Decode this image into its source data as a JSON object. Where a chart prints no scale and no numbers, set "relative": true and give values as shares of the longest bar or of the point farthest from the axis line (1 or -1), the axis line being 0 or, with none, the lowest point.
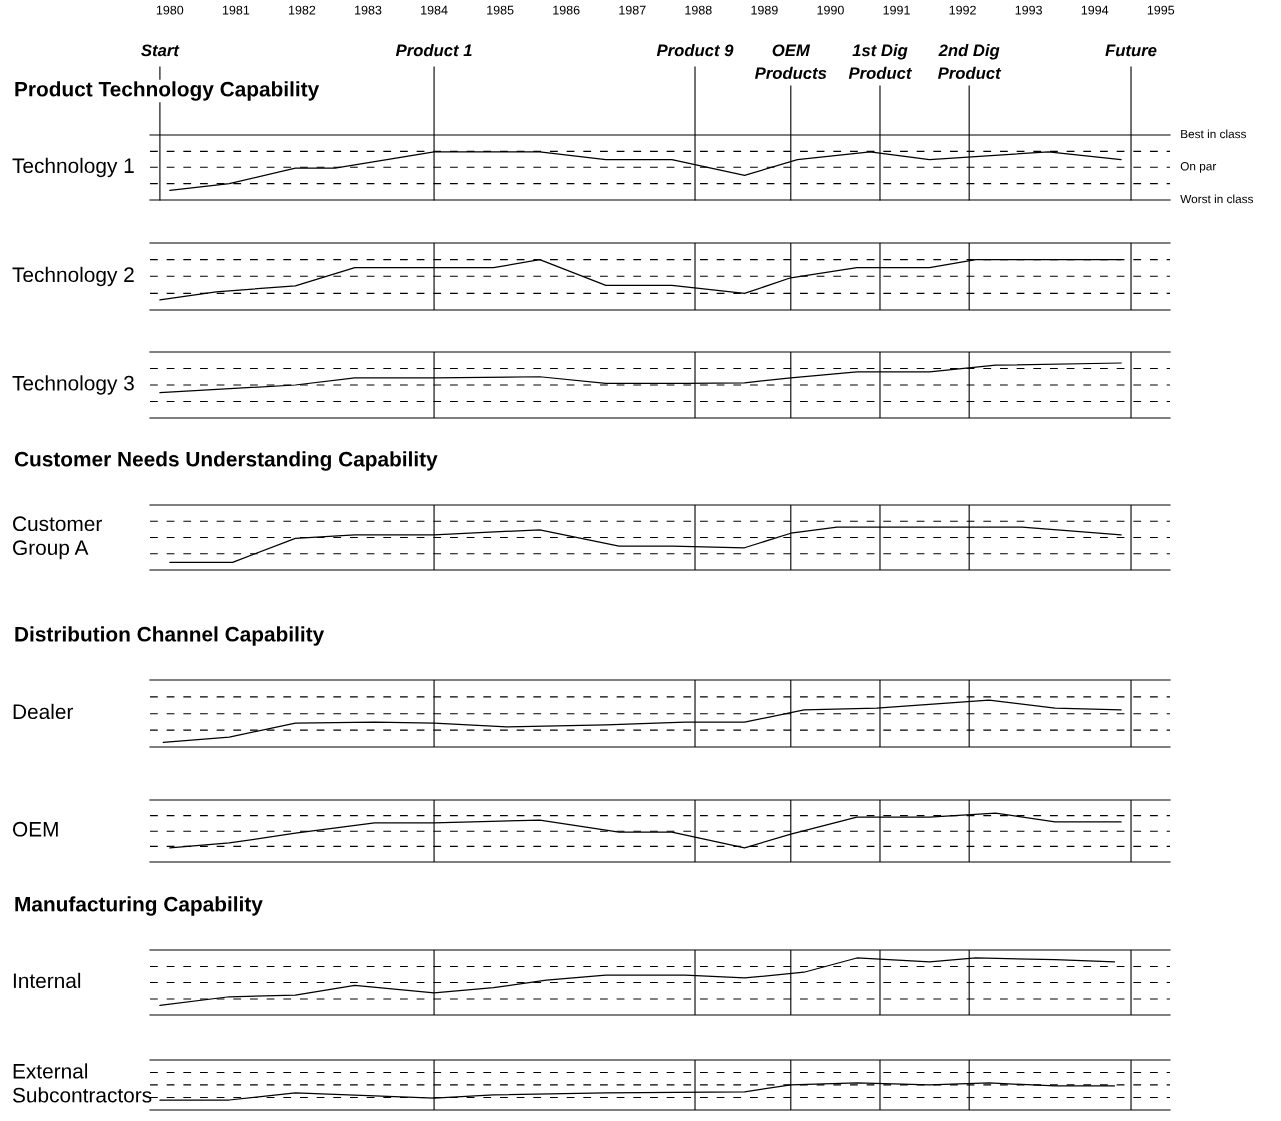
{
  "chart_data": [
    {
      "type": "line",
      "relative": true,
      "title": "Product Technology Capability",
      "ylabel": "Technology 1",
      "xlim": [
        1979.7,
        1995.14
      ],
      "xticks": [
        1980,
        1981,
        1982,
        1983,
        1984,
        1985,
        1986,
        1987,
        1988,
        1989,
        1990,
        1991,
        1992,
        1993,
        1994,
        1995
      ],
      "series": [
        {
          "color": "#000000",
          "x": [
            1980,
            1980.9,
            1981.9,
            1982.5,
            1984,
            1984.9,
            1985.6,
            1986.6,
            1987.6,
            1988.7,
            1989.5,
            1990.6,
            1991.5,
            1993.3,
            1994.4
          ],
          "values": [
            0.2,
            0.34,
            0.66,
            0.66,
            1,
            1,
            1,
            0.84,
            0.84,
            0.51,
            0.84,
            1,
            0.84,
            1,
            0.84
          ]
        }
      ],
      "ref_lines": [
        {
          "axis": "x",
          "value": 1979.85,
          "label": "Start"
        },
        {
          "axis": "x",
          "value": 1984.0,
          "label": "Product 1"
        },
        {
          "axis": "x",
          "value": 1987.95,
          "label": "Product 9"
        },
        {
          "axis": "x",
          "value": 1989.4,
          "label": "OEM\nProducts"
        },
        {
          "axis": "x",
          "value": 1990.75,
          "label": "1st Dig\nProduct"
        },
        {
          "axis": "x",
          "value": 1992.1,
          "label": "2nd Dig\nProduct"
        },
        {
          "axis": "x",
          "value": 1994.55,
          "label": "Future"
        },
        {
          "axis": "y",
          "value": 1.35,
          "label": "Best in class"
        },
        {
          "axis": "y",
          "value": 1.01,
          "line_style": "dashed"
        },
        {
          "axis": "y",
          "value": 0.68,
          "label": "On par",
          "line_style": "dashed"
        },
        {
          "axis": "y",
          "value": 0.34,
          "line_style": "dashed"
        }
      ],
      "annotations": [
        "Worst in class"
      ]
    },
    {
      "type": "line",
      "relative": true,
      "ylabel": "Technology 2",
      "xlim": [
        1979.7,
        1995.14
      ],
      "xticks": [
        1980,
        1981,
        1982,
        1983,
        1984,
        1985,
        1986,
        1987,
        1988,
        1989,
        1990,
        1991,
        1992,
        1993,
        1994,
        1995
      ],
      "tick_labels": false,
      "series": [
        {
          "color": "#000000",
          "x": [
            1979.85,
            1980.7,
            1981.9,
            1982.8,
            1984,
            1984.9,
            1985.6,
            1986.6,
            1987.6,
            1988.7,
            1989.4,
            1990.4,
            1991.5,
            1992.2,
            1994.4
          ],
          "values": [
            0.2,
            0.36,
            0.48,
            0.84,
            0.84,
            0.84,
            1,
            0.49,
            0.49,
            0.33,
            0.64,
            0.84,
            0.84,
            1,
            1
          ]
        }
      ],
      "ref_lines": [
        {
          "axis": "x",
          "value": 1984.0
        },
        {
          "axis": "x",
          "value": 1987.95
        },
        {
          "axis": "x",
          "value": 1989.4
        },
        {
          "axis": "x",
          "value": 1990.75
        },
        {
          "axis": "x",
          "value": 1992.1
        },
        {
          "axis": "x",
          "value": 1994.55
        },
        {
          "axis": "y",
          "value": 1.33
        },
        {
          "axis": "y",
          "value": 1,
          "line_style": "dashed"
        },
        {
          "axis": "y",
          "value": 0.67,
          "line_style": "dashed"
        },
        {
          "axis": "y",
          "value": 0.33,
          "line_style": "dashed"
        }
      ]
    },
    {
      "type": "line",
      "relative": true,
      "ylabel": "Technology 3",
      "xlim": [
        1979.7,
        1995.14
      ],
      "xticks": [
        1980,
        1981,
        1982,
        1983,
        1984,
        1985,
        1986,
        1987,
        1988,
        1989,
        1990,
        1991,
        1992,
        1993,
        1994,
        1995
      ],
      "tick_labels": false,
      "series": [
        {
          "color": "#000000",
          "x": [
            1979.85,
            1981.9,
            1982.8,
            1984,
            1985.6,
            1986.6,
            1987.8,
            1988.7,
            1989.4,
            1990.4,
            1991.5,
            1992.5,
            1994.4
          ],
          "values": [
            0.46,
            0.6,
            0.73,
            0.73,
            0.75,
            0.63,
            0.63,
            0.64,
            0.73,
            0.84,
            0.84,
            0.96,
            1
          ]
        }
      ],
      "ref_lines": [
        {
          "axis": "x",
          "value": 1984.0
        },
        {
          "axis": "x",
          "value": 1987.95
        },
        {
          "axis": "x",
          "value": 1989.4
        },
        {
          "axis": "x",
          "value": 1990.75
        },
        {
          "axis": "x",
          "value": 1992.1
        },
        {
          "axis": "x",
          "value": 1994.55
        },
        {
          "axis": "y",
          "value": 1.2
        },
        {
          "axis": "y",
          "value": 0.9,
          "line_style": "dashed"
        },
        {
          "axis": "y",
          "value": 0.6,
          "line_style": "dashed"
        },
        {
          "axis": "y",
          "value": 0.3,
          "line_style": "dashed"
        }
      ]
    },
    {
      "type": "line",
      "relative": true,
      "title": "Customer Needs Understanding Capability",
      "ylabel": "Customer\nGroup A",
      "xlim": [
        1979.7,
        1995.14
      ],
      "xticks": [
        1980,
        1981,
        1982,
        1983,
        1984,
        1985,
        1986,
        1987,
        1988,
        1989,
        1990,
        1991,
        1992,
        1993,
        1994,
        1995
      ],
      "tick_labels": false,
      "series": [
        {
          "color": "#000000",
          "x": [
            1980,
            1980.95,
            1981.9,
            1982.8,
            1984,
            1985.6,
            1986.8,
            1987.6,
            1988.7,
            1989.4,
            1990.1,
            1991.5,
            1992.9,
            1994.4
          ],
          "values": [
            0.18,
            0.18,
            0.74,
            0.82,
            0.82,
            0.94,
            0.56,
            0.56,
            0.52,
            0.86,
            1,
            1,
            1,
            0.82
          ]
        }
      ],
      "ref_lines": [
        {
          "axis": "x",
          "value": 1984.0
        },
        {
          "axis": "x",
          "value": 1987.95
        },
        {
          "axis": "x",
          "value": 1989.4
        },
        {
          "axis": "x",
          "value": 1990.75
        },
        {
          "axis": "x",
          "value": 1992.1
        },
        {
          "axis": "x",
          "value": 1994.55
        },
        {
          "axis": "y",
          "value": 1.52
        },
        {
          "axis": "y",
          "value": 1.14,
          "line_style": "dashed"
        },
        {
          "axis": "y",
          "value": 0.76,
          "line_style": "dashed"
        },
        {
          "axis": "y",
          "value": 0.38,
          "line_style": "dashed"
        }
      ]
    },
    {
      "type": "line",
      "relative": true,
      "title": "Distribution Channel Capability",
      "ylabel": "Dealer",
      "xlim": [
        1979.7,
        1995.14
      ],
      "xticks": [
        1980,
        1981,
        1982,
        1983,
        1984,
        1985,
        1986,
        1987,
        1988,
        1989,
        1990,
        1991,
        1992,
        1993,
        1994,
        1995
      ],
      "tick_labels": false,
      "series": [
        {
          "color": "#000000",
          "x": [
            1979.9,
            1980.9,
            1981.9,
            1983.1,
            1984,
            1985.1,
            1986.6,
            1987.8,
            1988.7,
            1989.6,
            1990.7,
            1992.4,
            1993.4,
            1994.4
          ],
          "values": [
            0.1,
            0.21,
            0.51,
            0.53,
            0.51,
            0.43,
            0.47,
            0.53,
            0.53,
            0.79,
            0.83,
            1,
            0.83,
            0.79
          ]
        }
      ],
      "ref_lines": [
        {
          "axis": "x",
          "value": 1984.0
        },
        {
          "axis": "x",
          "value": 1987.95
        },
        {
          "axis": "x",
          "value": 1989.4
        },
        {
          "axis": "x",
          "value": 1990.75
        },
        {
          "axis": "x",
          "value": 1992.1
        },
        {
          "axis": "x",
          "value": 1994.55
        },
        {
          "axis": "y",
          "value": 1.43
        },
        {
          "axis": "y",
          "value": 1.07,
          "line_style": "dashed"
        },
        {
          "axis": "y",
          "value": 0.71,
          "line_style": "dashed"
        },
        {
          "axis": "y",
          "value": 0.36,
          "line_style": "dashed"
        }
      ]
    },
    {
      "type": "line",
      "relative": true,
      "ylabel": "OEM",
      "xlim": [
        1979.7,
        1995.14
      ],
      "xticks": [
        1980,
        1981,
        1982,
        1983,
        1984,
        1985,
        1986,
        1987,
        1988,
        1989,
        1990,
        1991,
        1992,
        1993,
        1994,
        1995
      ],
      "tick_labels": false,
      "series": [
        {
          "color": "#000000",
          "x": [
            1980,
            1980.9,
            1981.9,
            1983.1,
            1984,
            1985.6,
            1986.8,
            1987.6,
            1988.7,
            1989.4,
            1990.4,
            1991.5,
            1992.5,
            1993.4,
            1994.4
          ],
          "values": [
            0.29,
            0.39,
            0.59,
            0.8,
            0.8,
            0.86,
            0.61,
            0.61,
            0.29,
            0.57,
            0.92,
            0.92,
            1,
            0.82,
            0.82
          ]
        }
      ],
      "ref_lines": [
        {
          "axis": "x",
          "value": 1984.0
        },
        {
          "axis": "x",
          "value": 1987.95
        },
        {
          "axis": "x",
          "value": 1989.4
        },
        {
          "axis": "x",
          "value": 1990.75
        },
        {
          "axis": "x",
          "value": 1992.1
        },
        {
          "axis": "x",
          "value": 1994.55
        },
        {
          "axis": "y",
          "value": 1.27
        },
        {
          "axis": "y",
          "value": 0.95,
          "line_style": "dashed"
        },
        {
          "axis": "y",
          "value": 0.63,
          "line_style": "dashed"
        },
        {
          "axis": "y",
          "value": 0.32,
          "line_style": "dashed"
        }
      ]
    },
    {
      "type": "line",
      "relative": true,
      "title": "Manufacturing Capability",
      "ylabel": "Internal",
      "xlim": [
        1979.7,
        1995.14
      ],
      "xticks": [
        1980,
        1981,
        1982,
        1983,
        1984,
        1985,
        1986,
        1987,
        1988,
        1989,
        1990,
        1991,
        1992,
        1993,
        1994,
        1995
      ],
      "tick_labels": false,
      "series": [
        {
          "color": "#000000",
          "x": [
            1979.85,
            1980.9,
            1981.9,
            1982.8,
            1984,
            1984.9,
            1985.7,
            1986.6,
            1987.8,
            1988.7,
            1989.6,
            1990.4,
            1991.5,
            1992.2,
            1993.4,
            1994.3
          ],
          "values": [
            0.17,
            0.32,
            0.35,
            0.52,
            0.39,
            0.48,
            0.61,
            0.7,
            0.7,
            0.65,
            0.75,
            1,
            0.93,
            1,
            0.97,
            0.93
          ]
        }
      ],
      "ref_lines": [
        {
          "axis": "x",
          "value": 1984.0
        },
        {
          "axis": "x",
          "value": 1987.95
        },
        {
          "axis": "x",
          "value": 1989.4
        },
        {
          "axis": "x",
          "value": 1990.75
        },
        {
          "axis": "x",
          "value": 1992.1
        },
        {
          "axis": "x",
          "value": 1994.55
        },
        {
          "axis": "y",
          "value": 1.14
        },
        {
          "axis": "y",
          "value": 0.85,
          "line_style": "dashed"
        },
        {
          "axis": "y",
          "value": 0.57,
          "line_style": "dashed"
        },
        {
          "axis": "y",
          "value": 0.28,
          "line_style": "dashed"
        }
      ]
    },
    {
      "type": "line",
      "relative": true,
      "ylabel": "External\nSubcontractors",
      "xlim": [
        1979.7,
        1995.14
      ],
      "xticks": [
        1980,
        1981,
        1982,
        1983,
        1984,
        1985,
        1986,
        1987,
        1988,
        1989,
        1990,
        1991,
        1992,
        1993,
        1994,
        1995
      ],
      "tick_labels": false,
      "series": [
        {
          "color": "#000000",
          "x": [
            1979.85,
            1980.9,
            1981.9,
            1984,
            1984.9,
            1986.6,
            1988.7,
            1989.4,
            1990.4,
            1991.5,
            1992.4,
            1993.4,
            1994.3
          ],
          "values": [
            0.37,
            0.37,
            0.63,
            0.44,
            0.56,
            0.63,
            0.67,
            0.93,
            1,
            0.93,
            1,
            0.89,
            0.89
          ]
        }
      ],
      "ref_lines": [
        {
          "axis": "x",
          "value": 1984.0
        },
        {
          "axis": "x",
          "value": 1987.95
        },
        {
          "axis": "x",
          "value": 1989.4
        },
        {
          "axis": "x",
          "value": 1990.75
        },
        {
          "axis": "x",
          "value": 1992.1
        },
        {
          "axis": "x",
          "value": 1994.55
        },
        {
          "axis": "y",
          "value": 1.85
        },
        {
          "axis": "y",
          "value": 1.39,
          "line_style": "dashed"
        },
        {
          "axis": "y",
          "value": 0.93,
          "line_style": "dashed"
        },
        {
          "axis": "y",
          "value": 0.46,
          "line_style": "dashed"
        }
      ]
    }
  ]
}
